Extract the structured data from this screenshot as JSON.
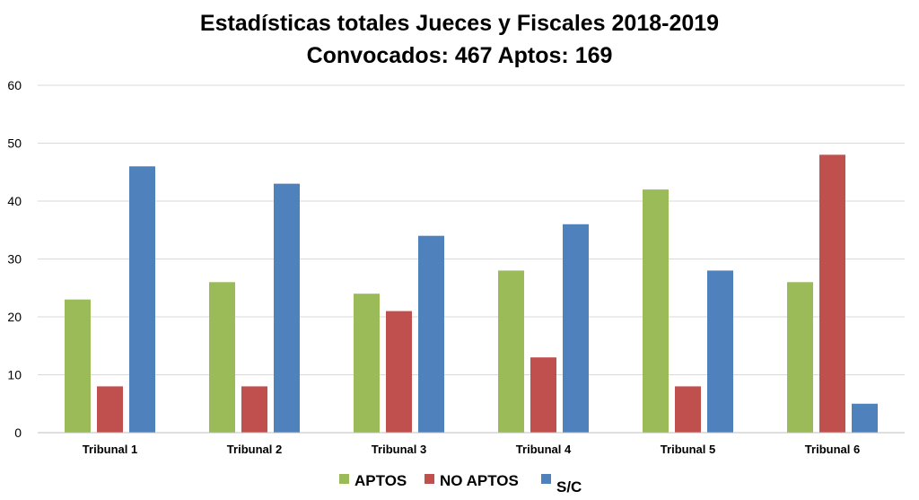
{
  "chart_data": {
    "type": "bar",
    "title": "Estadísticas totales Jueces y Fiscales 2018-2019",
    "subtitle": "Convocados: 467 Aptos: 169",
    "categories": [
      "Tribunal 1",
      "Tribunal 2",
      "Tribunal 3",
      "Tribunal 4",
      "Tribunal 5",
      "Tribunal 6"
    ],
    "series": [
      {
        "name": "APTOS",
        "color": "#9BBB59",
        "values": [
          23,
          26,
          24,
          28,
          42,
          26
        ]
      },
      {
        "name": "NO APTOS",
        "color": "#C0504D",
        "values": [
          8,
          8,
          21,
          13,
          8,
          48
        ]
      },
      {
        "name": "S/C",
        "color": "#4F81BD",
        "values": [
          46,
          43,
          34,
          36,
          28,
          5
        ]
      }
    ],
    "ylim": [
      0,
      60
    ],
    "yticks": [
      0,
      10,
      20,
      30,
      40,
      50,
      60
    ],
    "grid": true,
    "legend": "bottom"
  }
}
